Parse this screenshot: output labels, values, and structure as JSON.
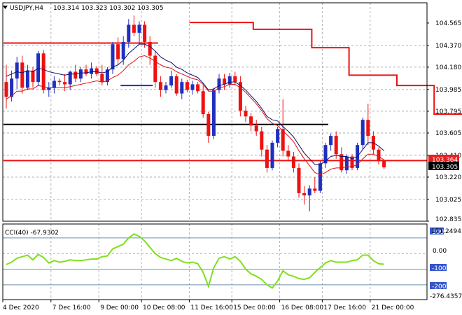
{
  "header": {
    "symbol": "USDJPY,H4",
    "ohlc": "103.314 103.323 103.302 103.305"
  },
  "indicator": {
    "label": "CCI(40) -67.9302",
    "max_label": "171.2494",
    "min_label": "-276.4357",
    "level_labels": [
      "100",
      "0.00",
      "-100",
      "-200"
    ],
    "color": "#7fe01a"
  },
  "colors": {
    "bull": "#1f2fbf",
    "bear": "#ee1111",
    "upper_ma": "#10106f",
    "lower_ma": "#dd1111",
    "step_line": "#ee1111",
    "support_line": "#000000",
    "price_badge": "#e81f1f",
    "current_badge": "#000000"
  },
  "price_badges": {
    "ask": "103.364",
    "current": "103.305"
  },
  "chart_data": [
    {
      "type": "candlestick",
      "title": "USDJPY,H4",
      "ylim": [
        102.835,
        104.65
      ],
      "y_ticks": [
        "104.565",
        "104.370",
        "104.180",
        "103.985",
        "103.795",
        "103.605",
        "103.410",
        "103.220",
        "103.025",
        "102.835"
      ],
      "x_ticks": [
        "4 Dec 2020",
        "7 Dec 16:00",
        "9 Dec 00:00",
        "10 Dec 08:00",
        "11 Dec 16:00",
        "15 Dec 00:00",
        "16 Dec 08:00",
        "17 Dec 16:00",
        "21 Dec 00:00"
      ],
      "candles": [
        {
          "o": 104.05,
          "h": 104.2,
          "l": 103.82,
          "c": 103.92
        },
        {
          "o": 103.92,
          "h": 104.15,
          "l": 103.88,
          "c": 104.08
        },
        {
          "o": 104.08,
          "h": 104.27,
          "l": 103.99,
          "c": 104.22
        },
        {
          "o": 104.22,
          "h": 104.28,
          "l": 103.95,
          "c": 104.0
        },
        {
          "o": 104.0,
          "h": 104.2,
          "l": 103.98,
          "c": 104.15
        },
        {
          "o": 104.15,
          "h": 104.18,
          "l": 104.0,
          "c": 104.05
        },
        {
          "o": 104.05,
          "h": 104.32,
          "l": 104.02,
          "c": 104.3
        },
        {
          "o": 104.3,
          "h": 104.33,
          "l": 103.95,
          "c": 103.98
        },
        {
          "o": 103.98,
          "h": 104.05,
          "l": 103.92,
          "c": 104.0
        },
        {
          "o": 104.0,
          "h": 104.1,
          "l": 103.95,
          "c": 104.06
        },
        {
          "o": 104.06,
          "h": 104.08,
          "l": 104.02,
          "c": 104.05
        },
        {
          "o": 104.05,
          "h": 104.12,
          "l": 103.97,
          "c": 104.03
        },
        {
          "o": 104.03,
          "h": 104.15,
          "l": 103.98,
          "c": 104.14
        },
        {
          "o": 104.14,
          "h": 104.2,
          "l": 104.05,
          "c": 104.08
        },
        {
          "o": 104.08,
          "h": 104.18,
          "l": 104.05,
          "c": 104.16
        },
        {
          "o": 104.16,
          "h": 104.2,
          "l": 104.1,
          "c": 104.12
        },
        {
          "o": 104.12,
          "h": 104.22,
          "l": 104.08,
          "c": 104.17
        },
        {
          "o": 104.17,
          "h": 104.19,
          "l": 104.1,
          "c": 104.12
        },
        {
          "o": 104.12,
          "h": 104.2,
          "l": 104.02,
          "c": 104.05
        },
        {
          "o": 104.05,
          "h": 104.18,
          "l": 104.02,
          "c": 104.16
        },
        {
          "o": 104.16,
          "h": 104.4,
          "l": 104.12,
          "c": 104.38
        },
        {
          "o": 104.38,
          "h": 104.44,
          "l": 104.2,
          "c": 104.25
        },
        {
          "o": 104.25,
          "h": 104.45,
          "l": 104.2,
          "c": 104.4
        },
        {
          "o": 104.4,
          "h": 104.6,
          "l": 104.35,
          "c": 104.55
        },
        {
          "o": 104.55,
          "h": 104.63,
          "l": 104.45,
          "c": 104.48
        },
        {
          "o": 104.48,
          "h": 104.58,
          "l": 104.38,
          "c": 104.55
        },
        {
          "o": 104.55,
          "h": 104.58,
          "l": 104.35,
          "c": 104.4
        },
        {
          "o": 104.4,
          "h": 104.45,
          "l": 104.2,
          "c": 104.28
        },
        {
          "o": 104.28,
          "h": 104.32,
          "l": 104.0,
          "c": 104.05
        },
        {
          "o": 104.05,
          "h": 104.1,
          "l": 103.92,
          "c": 103.98
        },
        {
          "o": 103.98,
          "h": 104.05,
          "l": 103.95,
          "c": 104.02
        },
        {
          "o": 104.02,
          "h": 104.15,
          "l": 104.0,
          "c": 104.1
        },
        {
          "o": 104.1,
          "h": 104.12,
          "l": 103.93,
          "c": 103.95
        },
        {
          "o": 103.95,
          "h": 104.08,
          "l": 103.9,
          "c": 104.05
        },
        {
          "o": 104.05,
          "h": 104.07,
          "l": 103.96,
          "c": 103.98
        },
        {
          "o": 103.98,
          "h": 104.06,
          "l": 103.94,
          "c": 104.03
        },
        {
          "o": 104.03,
          "h": 104.05,
          "l": 103.95,
          "c": 103.97
        },
        {
          "o": 103.97,
          "h": 104.02,
          "l": 103.74,
          "c": 103.77
        },
        {
          "o": 103.77,
          "h": 103.79,
          "l": 103.52,
          "c": 103.58
        },
        {
          "o": 103.58,
          "h": 104.0,
          "l": 103.55,
          "c": 103.98
        },
        {
          "o": 103.98,
          "h": 104.12,
          "l": 103.95,
          "c": 104.08
        },
        {
          "o": 104.08,
          "h": 104.12,
          "l": 103.98,
          "c": 104.03
        },
        {
          "o": 104.03,
          "h": 104.13,
          "l": 104.0,
          "c": 104.1
        },
        {
          "o": 104.1,
          "h": 104.14,
          "l": 104.02,
          "c": 104.05
        },
        {
          "o": 104.05,
          "h": 104.1,
          "l": 103.75,
          "c": 103.8
        },
        {
          "o": 103.8,
          "h": 103.84,
          "l": 103.7,
          "c": 103.75
        },
        {
          "o": 103.75,
          "h": 103.78,
          "l": 103.62,
          "c": 103.67
        },
        {
          "o": 103.67,
          "h": 103.72,
          "l": 103.58,
          "c": 103.62
        },
        {
          "o": 103.62,
          "h": 103.66,
          "l": 103.4,
          "c": 103.46
        },
        {
          "o": 103.46,
          "h": 103.5,
          "l": 103.26,
          "c": 103.3
        },
        {
          "o": 103.3,
          "h": 103.54,
          "l": 103.28,
          "c": 103.52
        },
        {
          "o": 103.52,
          "h": 103.66,
          "l": 103.48,
          "c": 103.64
        },
        {
          "o": 103.64,
          "h": 103.9,
          "l": 103.4,
          "c": 103.45
        },
        {
          "o": 103.45,
          "h": 103.5,
          "l": 103.36,
          "c": 103.4
        },
        {
          "o": 103.4,
          "h": 103.44,
          "l": 103.26,
          "c": 103.3
        },
        {
          "o": 103.3,
          "h": 103.34,
          "l": 103.04,
          "c": 103.08
        },
        {
          "o": 103.08,
          "h": 103.14,
          "l": 102.98,
          "c": 103.06
        },
        {
          "o": 103.06,
          "h": 103.15,
          "l": 102.92,
          "c": 103.12
        },
        {
          "o": 103.12,
          "h": 103.22,
          "l": 103.08,
          "c": 103.1
        },
        {
          "o": 103.1,
          "h": 103.36,
          "l": 103.08,
          "c": 103.34
        },
        {
          "o": 103.34,
          "h": 103.52,
          "l": 103.3,
          "c": 103.5
        },
        {
          "o": 103.5,
          "h": 103.6,
          "l": 103.45,
          "c": 103.58
        },
        {
          "o": 103.58,
          "h": 103.62,
          "l": 103.38,
          "c": 103.42
        },
        {
          "o": 103.42,
          "h": 103.48,
          "l": 103.26,
          "c": 103.28
        },
        {
          "o": 103.28,
          "h": 103.42,
          "l": 103.25,
          "c": 103.4
        },
        {
          "o": 103.4,
          "h": 103.42,
          "l": 103.28,
          "c": 103.3
        },
        {
          "o": 103.3,
          "h": 103.52,
          "l": 103.28,
          "c": 103.5
        },
        {
          "o": 103.5,
          "h": 103.74,
          "l": 103.46,
          "c": 103.72
        },
        {
          "o": 103.72,
          "h": 103.86,
          "l": 103.5,
          "c": 103.58
        },
        {
          "o": 103.58,
          "h": 103.62,
          "l": 103.42,
          "c": 103.46
        },
        {
          "o": 103.46,
          "h": 103.48,
          "l": 103.33,
          "c": 103.36
        },
        {
          "o": 103.36,
          "h": 103.37,
          "l": 103.29,
          "c": 103.305
        }
      ],
      "upper_ma": [
        104.1,
        104.12,
        104.14,
        104.13,
        104.15,
        104.14,
        104.17,
        104.16,
        104.14,
        104.13,
        104.12,
        104.11,
        104.12,
        104.12,
        104.13,
        104.13,
        104.14,
        104.14,
        104.13,
        104.14,
        104.18,
        104.2,
        104.24,
        104.3,
        104.34,
        104.38,
        104.38,
        104.36,
        104.32,
        104.27,
        104.24,
        104.22,
        104.18,
        104.16,
        104.13,
        104.11,
        104.09,
        104.04,
        103.98,
        103.99,
        104.02,
        104.03,
        104.05,
        104.05,
        104.02,
        103.98,
        103.93,
        103.88,
        103.82,
        103.75,
        103.72,
        103.71,
        103.66,
        103.62,
        103.57,
        103.5,
        103.43,
        103.38,
        103.33,
        103.33,
        103.36,
        103.4,
        103.41,
        103.4,
        103.4,
        103.38,
        103.4,
        103.46,
        103.52,
        103.52,
        103.49,
        103.45
      ],
      "lower_ma": [
        103.9,
        103.93,
        103.97,
        103.97,
        103.99,
        103.99,
        104.02,
        104.01,
        104.0,
        104.0,
        104.0,
        104.0,
        104.01,
        104.02,
        104.03,
        104.04,
        104.05,
        104.06,
        104.05,
        104.06,
        104.09,
        104.11,
        104.15,
        104.2,
        104.23,
        104.27,
        104.28,
        104.26,
        104.23,
        104.2,
        104.18,
        104.17,
        104.14,
        104.12,
        104.1,
        104.08,
        104.07,
        104.03,
        103.97,
        103.97,
        104.0,
        104.01,
        104.03,
        104.03,
        104.0,
        103.96,
        103.91,
        103.86,
        103.8,
        103.73,
        103.69,
        103.67,
        103.62,
        103.58,
        103.53,
        103.45,
        103.38,
        103.32,
        103.26,
        103.24,
        103.26,
        103.29,
        103.3,
        103.3,
        103.31,
        103.31,
        103.33,
        103.38,
        103.42,
        103.42,
        103.4,
        103.37
      ],
      "step_line": [
        {
          "from": 36,
          "to": 48,
          "y": 104.57
        },
        {
          "from": 48,
          "to": 59,
          "y": 104.51
        },
        {
          "from": 59,
          "to": 66,
          "y": 104.35
        },
        {
          "from": 66,
          "to": 75,
          "y": 104.11
        },
        {
          "from": 75,
          "to": 82,
          "y": 104.02
        },
        {
          "from": 82,
          "to": 95,
          "y": 103.77
        }
      ],
      "horizontal_lines": [
        {
          "from": 0,
          "to": 28,
          "y": 104.39,
          "color": "#ee1111"
        },
        {
          "from": 22,
          "to": 27,
          "y": 104.02,
          "color": "#1f2fbf"
        },
        {
          "from": 0,
          "to": 60,
          "y": 103.68,
          "color": "#000000"
        },
        {
          "from": 0,
          "to": 103,
          "y": 103.364,
          "color": "#ee1111"
        }
      ]
    },
    {
      "type": "line",
      "title": "CCI(40) -67.9302",
      "ylim": [
        -276.4357,
        171.2494
      ],
      "levels": [
        100,
        0,
        -100,
        -200
      ],
      "values": [
        -70,
        -55,
        -30,
        -20,
        -10,
        -40,
        -5,
        -25,
        -60,
        -45,
        -55,
        -50,
        -40,
        -45,
        -45,
        -40,
        -35,
        -35,
        -20,
        -15,
        30,
        45,
        60,
        100,
        125,
        110,
        80,
        40,
        0,
        -25,
        -35,
        -45,
        -30,
        -50,
        -60,
        -55,
        -65,
        -120,
        -210,
        -90,
        -30,
        -20,
        -35,
        -20,
        -50,
        -100,
        -130,
        -145,
        -165,
        -200,
        -220,
        -175,
        -110,
        -135,
        -145,
        -160,
        -165,
        -155,
        -120,
        -90,
        -60,
        -45,
        -55,
        -55,
        -55,
        -45,
        -40,
        -10,
        -10,
        -45,
        -65,
        -68
      ]
    }
  ]
}
